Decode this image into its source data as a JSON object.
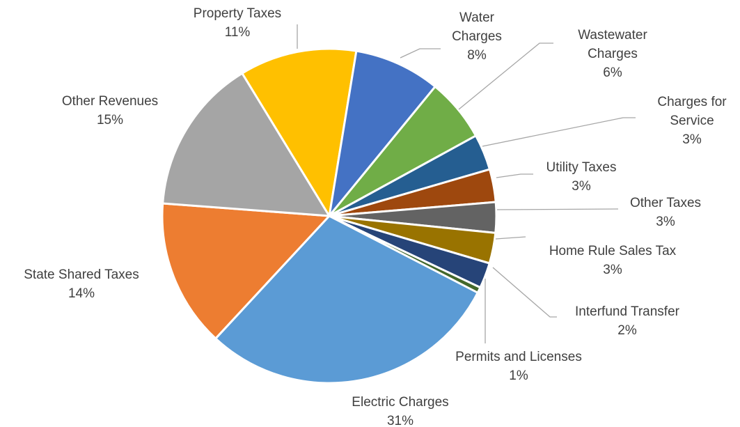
{
  "chart_data": {
    "type": "pie",
    "title": "",
    "slices": [
      {
        "name": "Electric Charges",
        "value": 31,
        "label_lines": [
          "Electric Charges",
          "31%"
        ],
        "color": "#5B9BD5"
      },
      {
        "name": "State Shared Taxes",
        "value": 14,
        "label_lines": [
          "State Shared Taxes",
          "14%"
        ],
        "color": "#ED7D31"
      },
      {
        "name": "Other Revenues",
        "value": 15,
        "label_lines": [
          "Other Revenues",
          "15%"
        ],
        "color": "#A5A5A5"
      },
      {
        "name": "Property Taxes",
        "value": 11,
        "label_lines": [
          "Property Taxes",
          "11%"
        ],
        "color": "#FFC000"
      },
      {
        "name": "Water Charges",
        "value": 8,
        "label_lines": [
          "Water",
          "Charges",
          "8%"
        ],
        "color": "#4472C4"
      },
      {
        "name": "Wastewater Charges",
        "value": 6,
        "label_lines": [
          "Wastewater",
          "Charges",
          "6%"
        ],
        "color": "#70AD47"
      },
      {
        "name": "Charges for Service",
        "value": 3,
        "label_lines": [
          "Charges for",
          "Service",
          "3%"
        ],
        "color": "#255E91"
      },
      {
        "name": "Utility Taxes",
        "value": 3,
        "label_lines": [
          "Utility Taxes",
          "3%"
        ],
        "color": "#9E480E"
      },
      {
        "name": "Other Taxes",
        "value": 3,
        "label_lines": [
          "Other Taxes",
          "3%"
        ],
        "color": "#636363"
      },
      {
        "name": "Home Rule Sales Tax",
        "value": 3,
        "label_lines": [
          "Home Rule Sales Tax",
          "3%"
        ],
        "color": "#997300"
      },
      {
        "name": "Interfund Transfer",
        "value": 2,
        "label_lines": [
          "Interfund Transfer",
          "2%"
        ],
        "color": "#264478"
      },
      {
        "name": "Permits and Licenses",
        "value": 1,
        "label_lines": [
          "Permits and Licenses",
          "1%"
        ],
        "color": "#43682B"
      }
    ]
  }
}
